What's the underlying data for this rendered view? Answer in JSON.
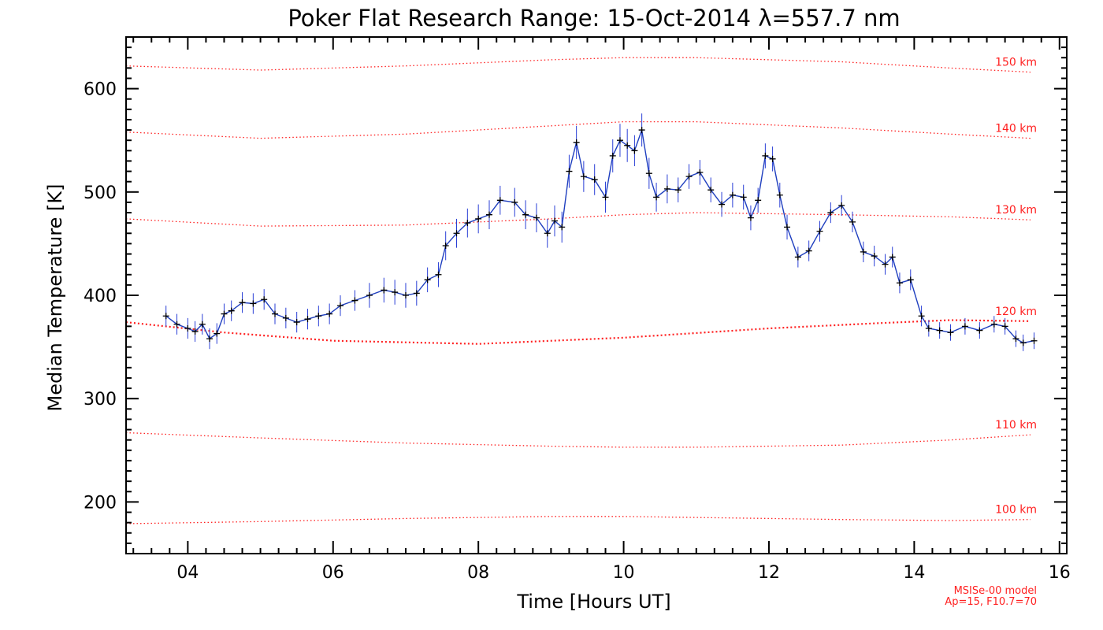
{
  "colors": {
    "background": "#ffffff",
    "axes": "#000000",
    "data_line": "#1f3fbf",
    "error_bars": "#2a3fd6",
    "markers": "#000000",
    "model_curves": "#ff2020"
  },
  "chart_data": {
    "type": "line",
    "title": "Poker Flat Research Range: 15-Oct-2014 λ=557.7 nm",
    "xlabel": "Time [Hours UT]",
    "ylabel": "Median Temperature [K]",
    "xlim": [
      3.15,
      16.1
    ],
    "ylim": [
      150,
      650
    ],
    "x_ticks": [
      4,
      6,
      8,
      10,
      12,
      14,
      16
    ],
    "x_tick_labels": [
      "04",
      "06",
      "08",
      "10",
      "12",
      "14",
      "16"
    ],
    "y_ticks": [
      200,
      300,
      400,
      500,
      600
    ],
    "y_tick_labels": [
      "200",
      "300",
      "400",
      "500",
      "600"
    ],
    "grid": false,
    "series": [
      {
        "kind": "measurement",
        "x": [
          3.7,
          3.85,
          4.0,
          4.1,
          4.2,
          4.3,
          4.4,
          4.5,
          4.6,
          4.75,
          4.9,
          5.05,
          5.2,
          5.35,
          5.5,
          5.65,
          5.8,
          5.95,
          6.1,
          6.3,
          6.5,
          6.7,
          6.85,
          7.0,
          7.15,
          7.3,
          7.45,
          7.55,
          7.7,
          7.85,
          8.0,
          8.15,
          8.3,
          8.5,
          8.65,
          8.8,
          8.95,
          9.05,
          9.15,
          9.25,
          9.35,
          9.45,
          9.6,
          9.75,
          9.85,
          9.95,
          10.05,
          10.15,
          10.25,
          10.35,
          10.45,
          10.6,
          10.75,
          10.9,
          11.05,
          11.2,
          11.35,
          11.5,
          11.65,
          11.75,
          11.85,
          11.95,
          12.05,
          12.15,
          12.25,
          12.4,
          12.55,
          12.7,
          12.85,
          13.0,
          13.15,
          13.3,
          13.45,
          13.6,
          13.7,
          13.8,
          13.95,
          14.1,
          14.2,
          14.35,
          14.5,
          14.7,
          14.9,
          15.1,
          15.25,
          15.4,
          15.5,
          15.65
        ],
        "y": [
          380,
          372,
          368,
          365,
          372,
          358,
          363,
          382,
          385,
          393,
          392,
          396,
          382,
          378,
          374,
          377,
          380,
          382,
          390,
          395,
          400,
          405,
          403,
          400,
          402,
          415,
          420,
          448,
          460,
          470,
          474,
          478,
          492,
          490,
          478,
          475,
          460,
          472,
          466,
          520,
          548,
          515,
          512,
          495,
          535,
          550,
          545,
          540,
          560,
          518,
          495,
          503,
          502,
          515,
          519,
          502,
          488,
          497,
          495,
          475,
          492,
          535,
          532,
          497,
          466,
          437,
          443,
          462,
          480,
          487,
          471,
          442,
          438,
          430,
          437,
          412,
          415,
          380,
          368,
          366,
          364,
          370,
          366,
          372,
          370,
          358,
          354,
          356
        ],
        "error": [
          10,
          10,
          10,
          10,
          10,
          10,
          10,
          10,
          10,
          10,
          10,
          10,
          10,
          10,
          10,
          10,
          10,
          10,
          10,
          10,
          12,
          12,
          12,
          12,
          12,
          12,
          12,
          14,
          14,
          14,
          14,
          14,
          14,
          14,
          14,
          14,
          14,
          15,
          15,
          16,
          16,
          15,
          15,
          15,
          16,
          16,
          16,
          15,
          16,
          15,
          14,
          14,
          12,
          12,
          12,
          12,
          12,
          12,
          12,
          12,
          12,
          12,
          12,
          12,
          12,
          10,
          10,
          10,
          10,
          10,
          10,
          10,
          10,
          10,
          10,
          10,
          10,
          10,
          8,
          8,
          8,
          8,
          8,
          8,
          8,
          8,
          8,
          8
        ]
      },
      {
        "kind": "model",
        "name": "150 km",
        "x": [
          3.15,
          5,
          7,
          9,
          10,
          11,
          13,
          14.5,
          15.6
        ],
        "y": [
          622,
          618,
          622,
          628,
          630,
          630,
          626,
          620,
          616
        ]
      },
      {
        "kind": "model",
        "name": "140 km",
        "x": [
          3.15,
          5,
          7,
          9,
          10,
          11,
          13,
          14.5,
          15.6
        ],
        "y": [
          558,
          552,
          556,
          564,
          568,
          568,
          562,
          556,
          552
        ]
      },
      {
        "kind": "model",
        "name": "130 km",
        "x": [
          3.15,
          5,
          7,
          9,
          10,
          11,
          13,
          14.5,
          15.6
        ],
        "y": [
          474,
          467,
          468,
          474,
          478,
          480,
          478,
          476,
          473
        ]
      },
      {
        "kind": "model",
        "name": "120 km",
        "x": [
          3.15,
          4.5,
          6,
          8,
          10,
          12,
          13.5,
          14.5,
          15.6
        ],
        "y": [
          374,
          364,
          356,
          353,
          359,
          368,
          373,
          376,
          375
        ]
      },
      {
        "kind": "model",
        "name": "110 km",
        "x": [
          3.15,
          5,
          7,
          9,
          10,
          11,
          13,
          14.5,
          15.6
        ],
        "y": [
          267,
          262,
          257,
          254,
          253,
          253,
          255,
          260,
          265
        ]
      },
      {
        "kind": "model",
        "name": "100 km",
        "x": [
          3.15,
          5,
          7,
          9,
          10,
          11,
          13,
          14.5,
          15.6
        ],
        "y": [
          179,
          181,
          184,
          186,
          186,
          185,
          183,
          182,
          183
        ]
      }
    ],
    "altitude_labels": [
      "150 km",
      "140 km",
      "130 km",
      "120 km",
      "110 km",
      "100 km"
    ],
    "model_note_line1": "MSISe-00 model",
    "model_note_line2": "Ap=15, F10.7=70"
  }
}
